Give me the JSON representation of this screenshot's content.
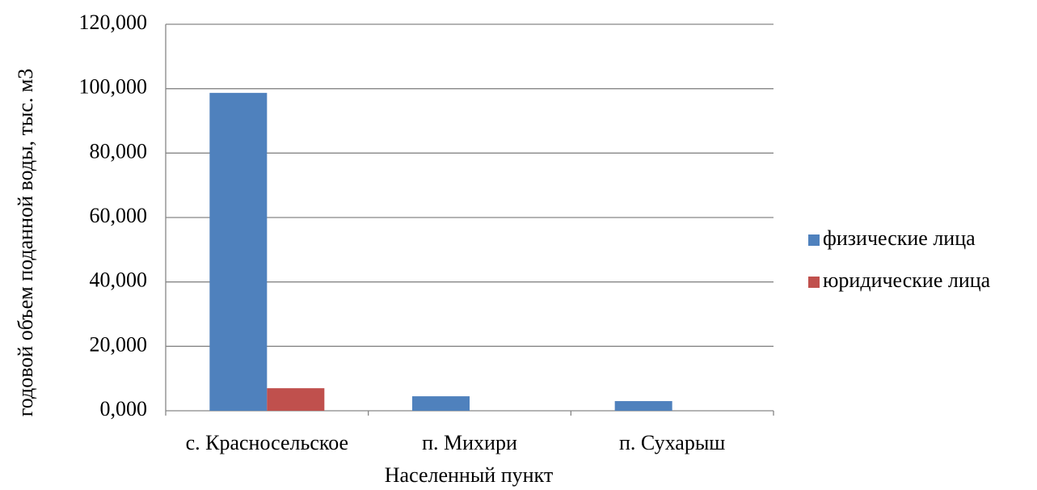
{
  "chart_data": {
    "type": "bar",
    "x_label": "Населенный пункт",
    "y_label": "годовой объем поданной воды, тыс. м3",
    "categories": [
      "с. Красносельское",
      "п. Михири",
      "п. Сухарыш"
    ],
    "series": [
      {
        "name": "физические лица",
        "color": "#4f81bd",
        "values": [
          98700,
          4500,
          3000
        ]
      },
      {
        "name": "юридические лица",
        "color": "#c0504d",
        "values": [
          7000,
          0,
          0
        ]
      }
    ],
    "ylim": [
      0,
      120000
    ],
    "yticks": [
      {
        "value": 0,
        "label": "0,000"
      },
      {
        "value": 20000,
        "label": "20,000"
      },
      {
        "value": 40000,
        "label": "40,000"
      },
      {
        "value": 60000,
        "label": "60,000"
      },
      {
        "value": 80000,
        "label": "80,000"
      },
      {
        "value": 100000,
        "label": "100,000"
      },
      {
        "value": 120000,
        "label": "120,000"
      }
    ],
    "grid": true,
    "legend": "right"
  }
}
